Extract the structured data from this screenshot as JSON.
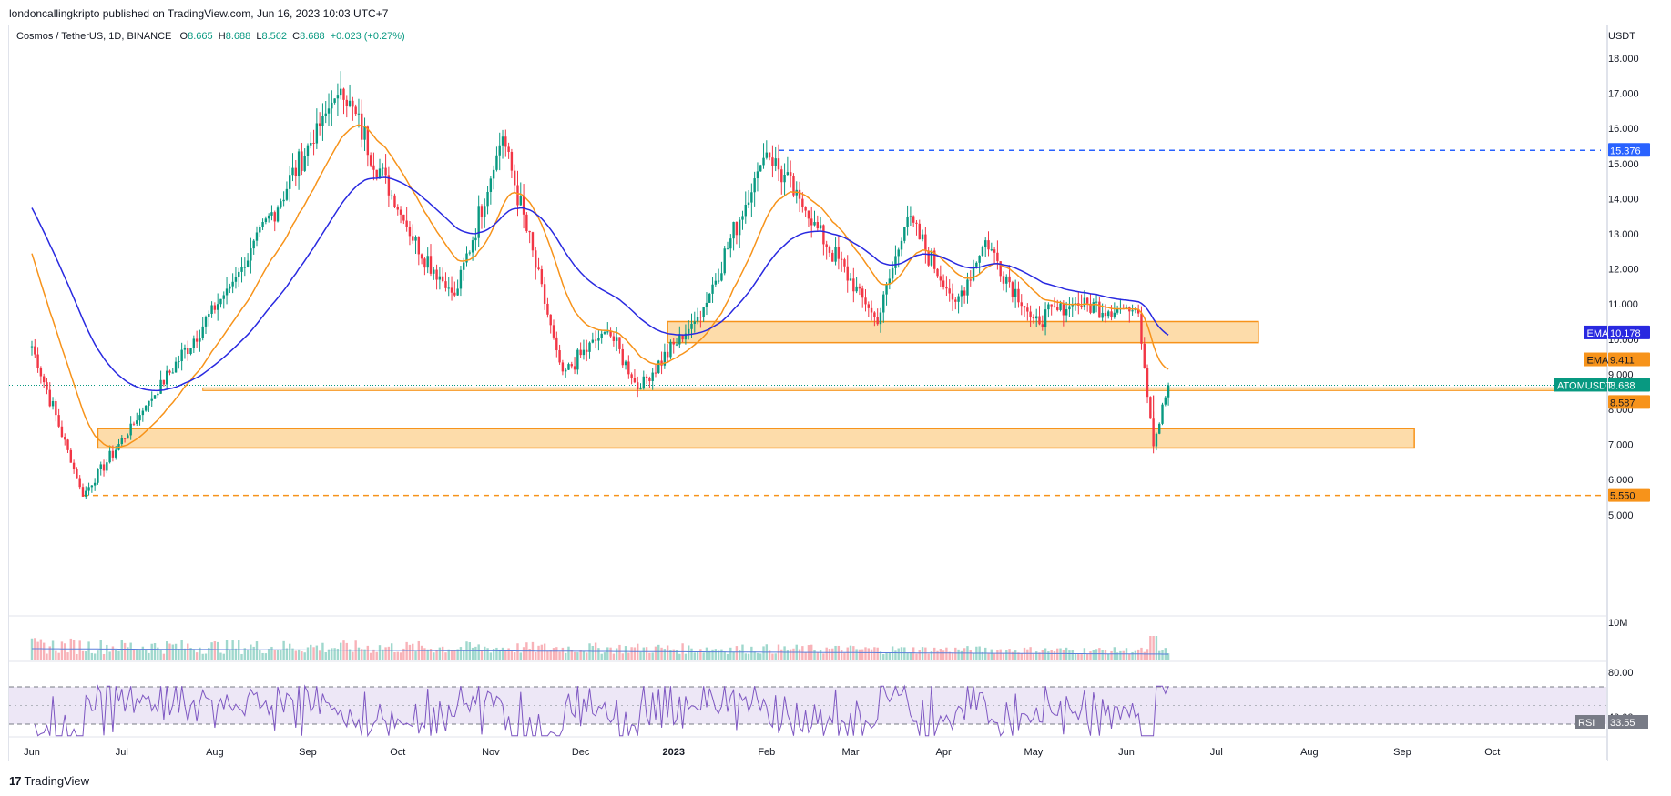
{
  "header": {
    "published": "londoncallingkripto published on TradingView.com, Jun 16, 2023 10:03 UTC+7",
    "symbol": "Cosmos / TetherUS, 1D, BINANCE",
    "o_label": "O",
    "o": "8.665",
    "h_label": "H",
    "h": "8.688",
    "l_label": "L",
    "l": "8.562",
    "c_label": "C",
    "c": "8.688",
    "change": "+0.023 (+0.27%)",
    "unit": "USDT"
  },
  "footer": {
    "brand": "TradingView",
    "brand_mark": "17"
  },
  "colors": {
    "up": "#089981",
    "down": "#f23645",
    "ema_slow": "#2929e0",
    "ema_fast": "#f7931a",
    "zone_fill": "#fddcaa",
    "zone_border": "#f7931a",
    "dash_top": "#2962ff",
    "dash_bottom": "#f7931a",
    "rsi_line": "#7e57c2",
    "rsi_band": "#ede7f6",
    "volume_ma": "#5b7fdc"
  },
  "chart_data": {
    "type": "candlestick",
    "symbol": "ATOMUSDT",
    "interval": "1D",
    "price_axis_ticks": [
      "18.000",
      "17.000",
      "16.000",
      "15.000",
      "14.000",
      "13.000",
      "12.000",
      "11.000",
      "10.000",
      "9.000",
      "8.000",
      "7.000",
      "6.000",
      "5.000"
    ],
    "x_ticks": [
      "Jun",
      "Jul",
      "Aug",
      "Sep",
      "Oct",
      "Nov",
      "Dec",
      "2023",
      "Feb",
      "Mar",
      "Apr",
      "May",
      "Jun",
      "Jul",
      "Aug",
      "Sep",
      "Oct"
    ],
    "price_key_points": [
      {
        "date": "2022-06-01",
        "price": 9.8
      },
      {
        "date": "2022-06-18",
        "price": 5.55
      },
      {
        "date": "2022-07-10",
        "price": 8.2
      },
      {
        "date": "2022-08-10",
        "price": 12.0
      },
      {
        "date": "2022-09-12",
        "price": 17.2
      },
      {
        "date": "2022-10-05",
        "price": 13.0
      },
      {
        "date": "2022-10-20",
        "price": 11.2
      },
      {
        "date": "2022-11-05",
        "price": 15.8
      },
      {
        "date": "2022-11-25",
        "price": 9.0
      },
      {
        "date": "2022-12-10",
        "price": 10.3
      },
      {
        "date": "2022-12-20",
        "price": 8.6
      },
      {
        "date": "2023-01-10",
        "price": 10.7
      },
      {
        "date": "2023-02-01",
        "price": 15.376
      },
      {
        "date": "2023-02-15",
        "price": 13.5
      },
      {
        "date": "2023-03-10",
        "price": 10.5
      },
      {
        "date": "2023-03-20",
        "price": 13.5
      },
      {
        "date": "2023-04-05",
        "price": 11.0
      },
      {
        "date": "2023-04-15",
        "price": 12.8
      },
      {
        "date": "2023-05-01",
        "price": 10.5
      },
      {
        "date": "2023-05-15",
        "price": 11.0
      },
      {
        "date": "2023-06-05",
        "price": 10.8
      },
      {
        "date": "2023-06-10",
        "price": 7.0
      },
      {
        "date": "2023-06-15",
        "price": 8.688
      }
    ],
    "ema_slow": {
      "name": "EMA",
      "last": "10.178"
    },
    "ema_fast": {
      "name": "EMA",
      "last": "9.411"
    },
    "last_price": {
      "label": "ATOMUSDT",
      "value": "8.688"
    },
    "support_line": {
      "value": "8.587"
    },
    "horizontal_levels": [
      {
        "value": "15.376",
        "style": "dashed",
        "color": "#2962ff"
      },
      {
        "value": "5.550",
        "style": "dashed",
        "color": "#f7931a"
      }
    ],
    "zones": [
      {
        "from_date": "2022-12-30",
        "to_date": "2023-07-15",
        "low": 9.9,
        "high": 10.5
      },
      {
        "from_date": "2022-06-23",
        "to_date": "2023-09-05",
        "low": 6.9,
        "high": 7.45
      }
    ],
    "volume_axis_label": "10M",
    "rsi": {
      "name": "RSI",
      "last": "33.55",
      "upper": "80.00",
      "visible_tick": "40.00"
    }
  }
}
